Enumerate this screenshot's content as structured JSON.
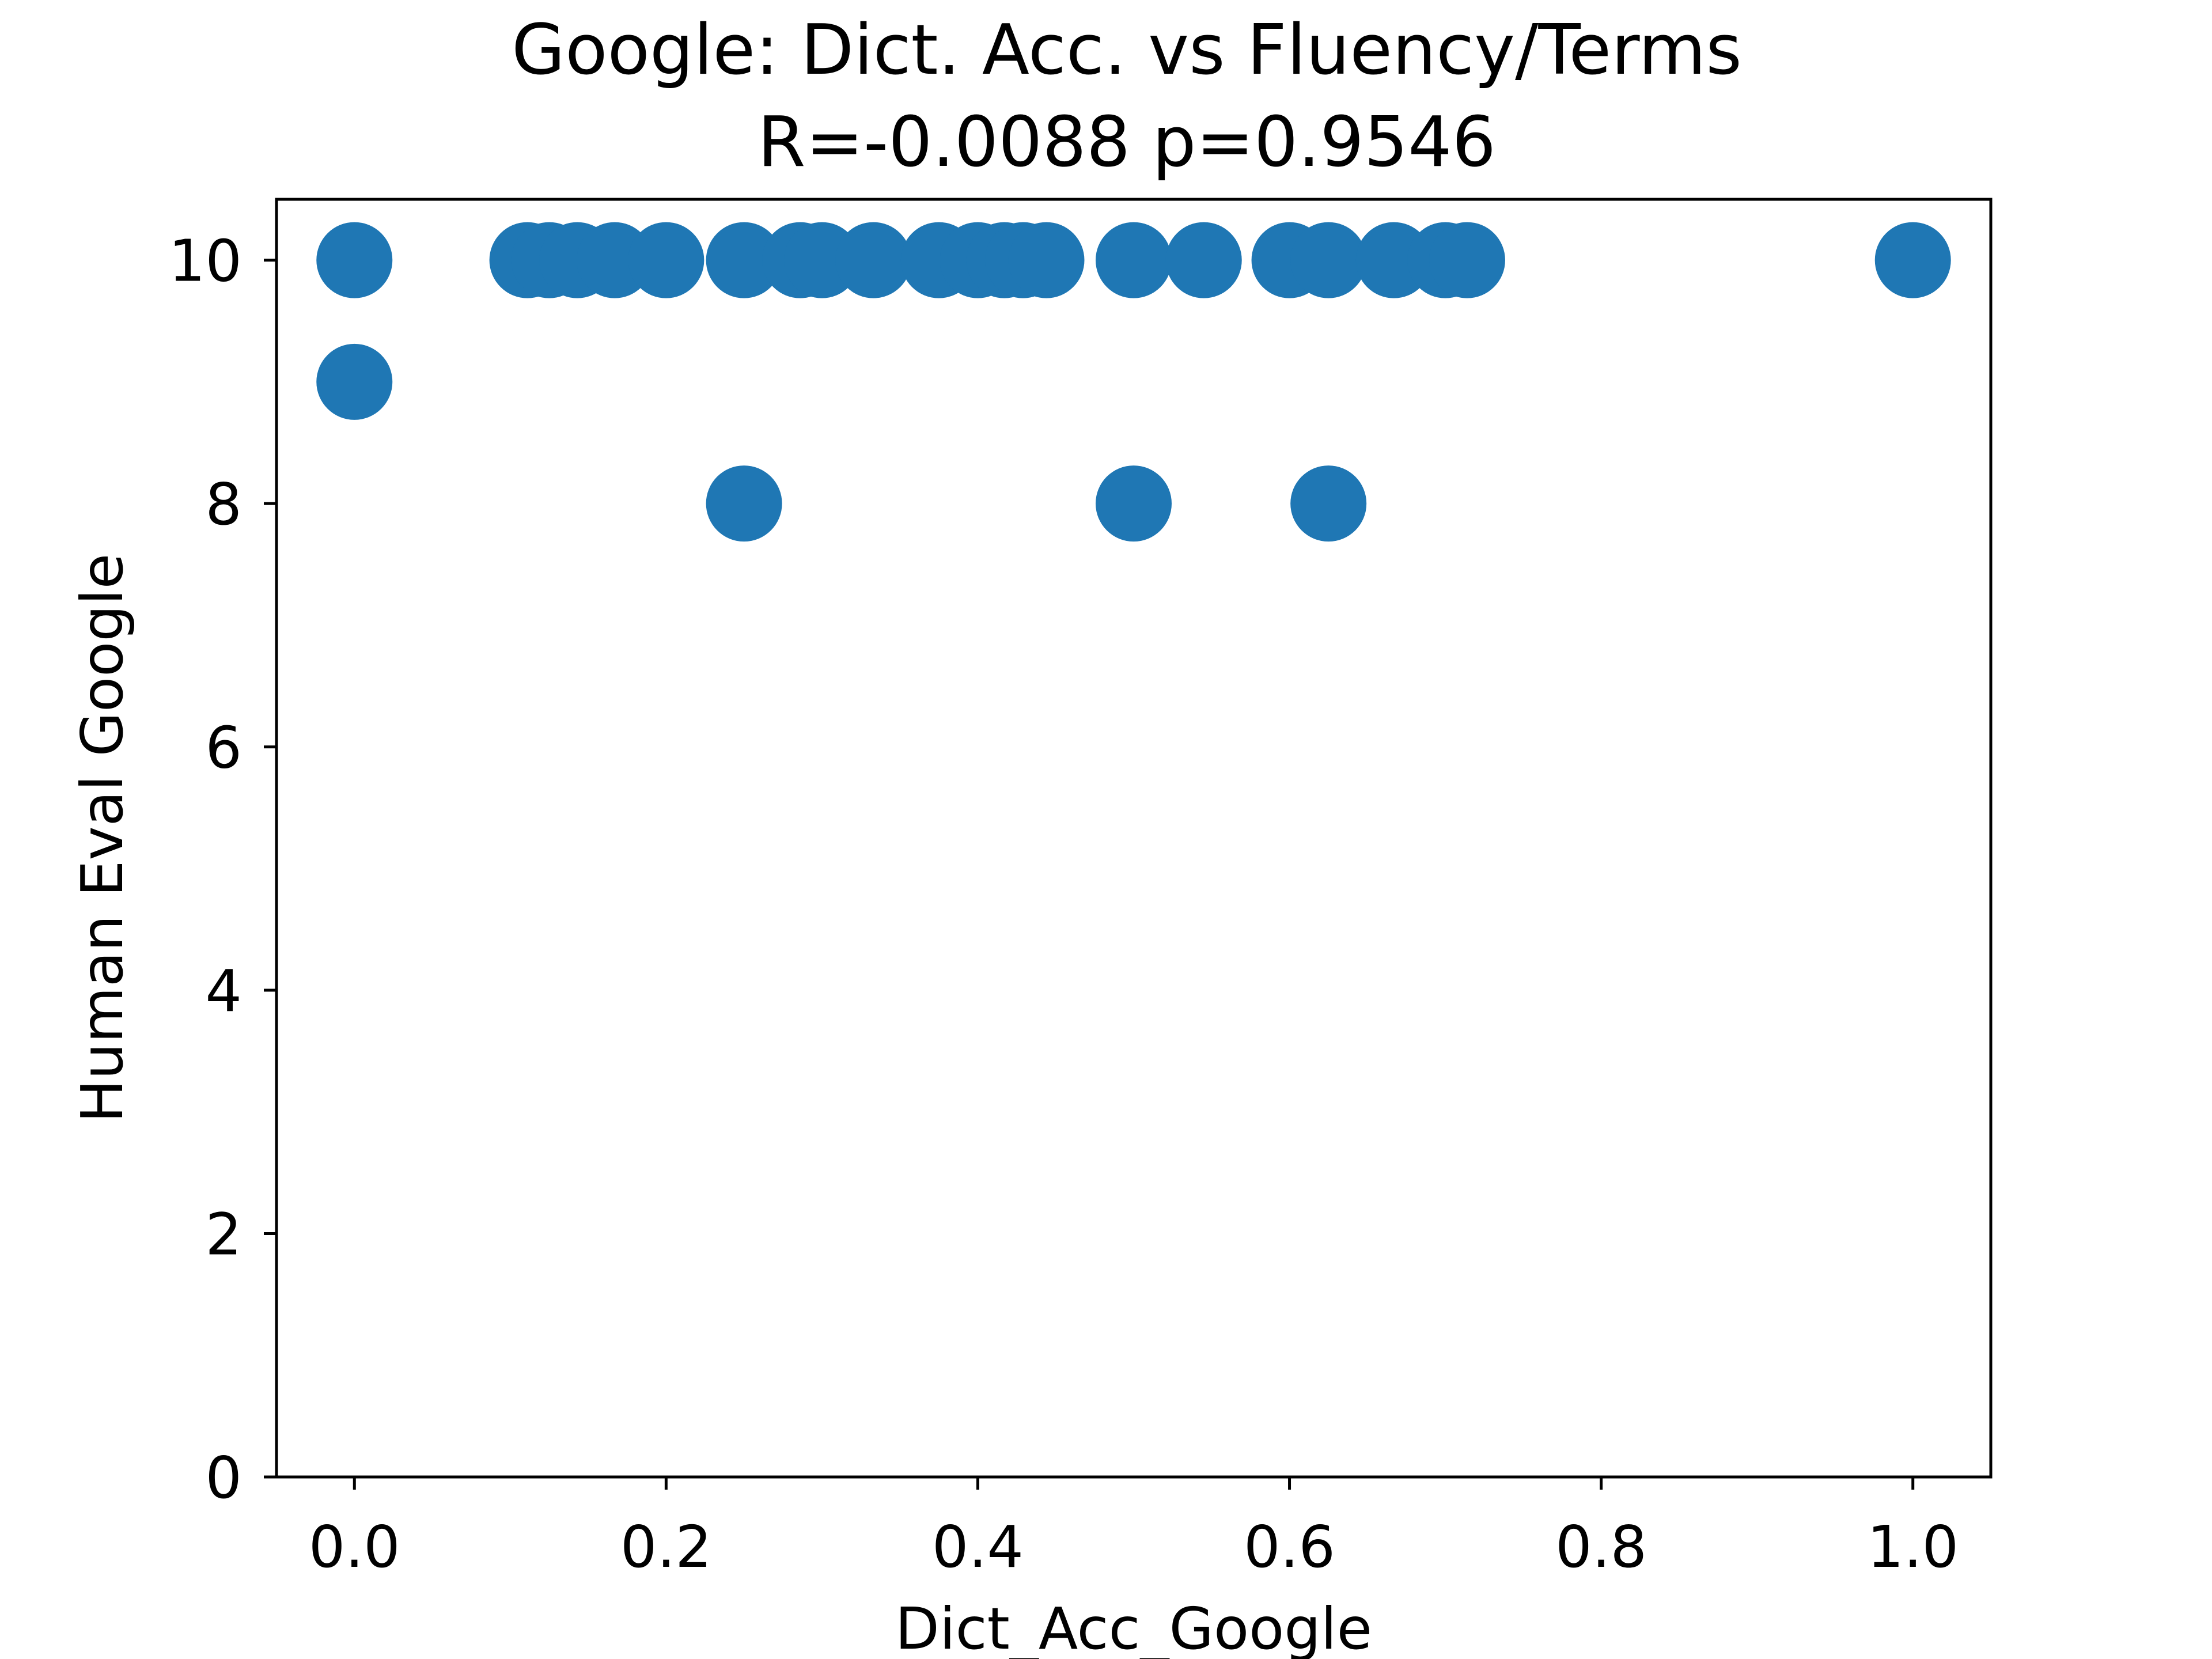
{
  "chart_data": {
    "type": "scatter",
    "title": "Google: Dict. Acc. vs Fluency/Terms",
    "subtitle": "R=-0.0088 p=0.9546",
    "xlabel": "Dict_Acc_Google",
    "ylabel": "Human Eval Google",
    "xlim": [
      -0.05,
      1.05
    ],
    "ylim": [
      0,
      10.5
    ],
    "x_ticks": [
      "0.0",
      "0.2",
      "0.4",
      "0.6",
      "0.8",
      "1.0"
    ],
    "y_ticks": [
      "0",
      "2",
      "4",
      "6",
      "8",
      "10"
    ],
    "grid": false,
    "marker_color": "#1f77b4",
    "points": [
      {
        "x": 0.0,
        "y": 10
      },
      {
        "x": 0.0,
        "y": 9
      },
      {
        "x": 0.111,
        "y": 10
      },
      {
        "x": 0.125,
        "y": 10
      },
      {
        "x": 0.143,
        "y": 10
      },
      {
        "x": 0.167,
        "y": 10
      },
      {
        "x": 0.2,
        "y": 10
      },
      {
        "x": 0.25,
        "y": 10
      },
      {
        "x": 0.25,
        "y": 8
      },
      {
        "x": 0.286,
        "y": 10
      },
      {
        "x": 0.3,
        "y": 10
      },
      {
        "x": 0.333,
        "y": 10
      },
      {
        "x": 0.375,
        "y": 10
      },
      {
        "x": 0.4,
        "y": 10
      },
      {
        "x": 0.417,
        "y": 10
      },
      {
        "x": 0.429,
        "y": 10
      },
      {
        "x": 0.444,
        "y": 10
      },
      {
        "x": 0.5,
        "y": 10
      },
      {
        "x": 0.5,
        "y": 8
      },
      {
        "x": 0.545,
        "y": 10
      },
      {
        "x": 0.6,
        "y": 10
      },
      {
        "x": 0.625,
        "y": 10
      },
      {
        "x": 0.625,
        "y": 8
      },
      {
        "x": 0.667,
        "y": 10
      },
      {
        "x": 0.7,
        "y": 10
      },
      {
        "x": 0.714,
        "y": 10
      },
      {
        "x": 1.0,
        "y": 10
      }
    ]
  }
}
